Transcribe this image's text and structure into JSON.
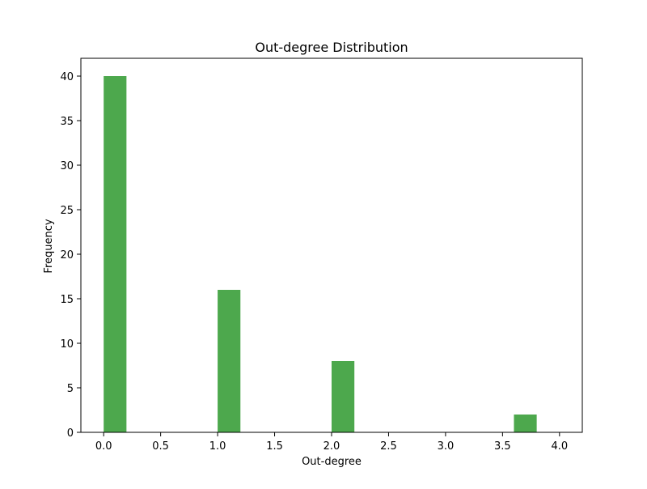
{
  "chart_data": {
    "type": "bar",
    "title": "Out-degree Distribution",
    "xlabel": "Out-degree",
    "ylabel": "Frequency",
    "xlim": [
      -0.2,
      4.2
    ],
    "ylim": [
      0,
      42
    ],
    "xticks": [
      0.0,
      0.5,
      1.0,
      1.5,
      2.0,
      2.5,
      3.0,
      3.5,
      4.0
    ],
    "xtick_labels": [
      "0.0",
      "0.5",
      "1.0",
      "1.5",
      "2.0",
      "2.5",
      "3.0",
      "3.5",
      "4.0"
    ],
    "yticks": [
      0,
      5,
      10,
      15,
      20,
      25,
      30,
      35,
      40
    ],
    "ytick_labels": [
      "0",
      "5",
      "10",
      "15",
      "20",
      "25",
      "30",
      "35",
      "40"
    ],
    "bin_edges": [
      0.0,
      0.2,
      0.4,
      0.6,
      0.8,
      1.0,
      1.2,
      1.4,
      1.6,
      1.8,
      2.0,
      2.2,
      2.4,
      2.6,
      2.8,
      3.0,
      3.2,
      3.4,
      3.6,
      3.8,
      4.0
    ],
    "values": [
      40,
      0,
      0,
      0,
      0,
      16,
      0,
      0,
      0,
      0,
      8,
      0,
      0,
      0,
      0,
      0,
      0,
      0,
      2,
      0
    ],
    "color": "#4da84d",
    "grid": false
  }
}
